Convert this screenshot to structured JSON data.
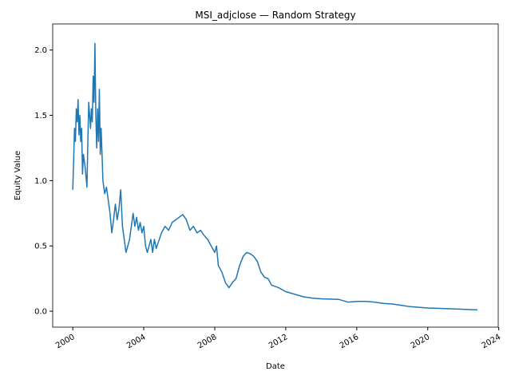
{
  "chart_data": {
    "type": "line",
    "title": "MSI_adjclose — Random Strategy",
    "x_label": "Date",
    "y_label": "Equity Value",
    "xlim": [
      1998.87,
      2023.97
    ],
    "ylim": [
      -0.122,
      2.2
    ],
    "xticks": [
      2000,
      2004,
      2008,
      2012,
      2016,
      2020,
      2024
    ],
    "yticks": [
      {
        "value": 0,
        "label": "0.0"
      },
      {
        "value": 0.5,
        "label": "0.5"
      },
      {
        "value": 1,
        "label": "1.0"
      },
      {
        "value": 1.5,
        "label": "1.5"
      },
      {
        "value": 2,
        "label": "2.0"
      }
    ],
    "grid": false,
    "series": [
      {
        "color": "#1f77b4",
        "x": [
          2000.0,
          2000.05,
          2000.1,
          2000.15,
          2000.2,
          2000.25,
          2000.3,
          2000.35,
          2000.4,
          2000.45,
          2000.5,
          2000.55,
          2000.6,
          2000.7,
          2000.8,
          2000.85,
          2000.9,
          2001.0,
          2001.05,
          2001.1,
          2001.15,
          2001.2,
          2001.25,
          2001.3,
          2001.35,
          2001.4,
          2001.45,
          2001.5,
          2001.55,
          2001.6,
          2001.7,
          2001.8,
          2001.9,
          2002.0,
          2002.1,
          2002.2,
          2002.3,
          2002.4,
          2002.5,
          2002.6,
          2002.7,
          2002.8,
          2002.9,
          2003.0,
          2003.1,
          2003.2,
          2003.3,
          2003.4,
          2003.5,
          2003.6,
          2003.7,
          2003.8,
          2003.9,
          2004.0,
          2004.1,
          2004.2,
          2004.3,
          2004.4,
          2004.5,
          2004.6,
          2004.7,
          2004.8,
          2005.0,
          2005.2,
          2005.4,
          2005.6,
          2005.8,
          2006.0,
          2006.2,
          2006.4,
          2006.6,
          2006.8,
          2007.0,
          2007.2,
          2007.4,
          2007.6,
          2007.8,
          2008.0,
          2008.1,
          2008.2,
          2008.4,
          2008.6,
          2008.8,
          2009.0,
          2009.2,
          2009.4,
          2009.6,
          2009.8,
          2010.0,
          2010.2,
          2010.4,
          2010.6,
          2010.8,
          2011.0,
          2011.2,
          2011.6,
          2012.0,
          2012.5,
          2013.0,
          2013.5,
          2014.0,
          2015.0,
          2015.5,
          2016.0,
          2016.5,
          2017.0,
          2017.5,
          2018.0,
          2018.5,
          2019.0,
          2019.5,
          2020.0,
          2021.0,
          2022.0,
          2022.8
        ],
        "values": [
          0.93,
          1.15,
          1.4,
          1.3,
          1.55,
          1.45,
          1.62,
          1.35,
          1.5,
          1.3,
          1.4,
          1.05,
          1.2,
          1.1,
          0.95,
          1.3,
          1.6,
          1.4,
          1.55,
          1.45,
          1.8,
          1.6,
          2.05,
          1.5,
          1.25,
          1.55,
          1.3,
          1.7,
          1.2,
          1.4,
          1.0,
          0.9,
          0.95,
          0.85,
          0.75,
          0.6,
          0.7,
          0.82,
          0.7,
          0.78,
          0.93,
          0.65,
          0.55,
          0.45,
          0.5,
          0.55,
          0.65,
          0.75,
          0.65,
          0.72,
          0.62,
          0.68,
          0.6,
          0.65,
          0.5,
          0.45,
          0.5,
          0.55,
          0.45,
          0.55,
          0.48,
          0.52,
          0.6,
          0.65,
          0.62,
          0.68,
          0.7,
          0.72,
          0.74,
          0.7,
          0.62,
          0.65,
          0.6,
          0.62,
          0.58,
          0.55,
          0.5,
          0.45,
          0.5,
          0.35,
          0.3,
          0.22,
          0.18,
          0.22,
          0.25,
          0.35,
          0.42,
          0.45,
          0.44,
          0.42,
          0.38,
          0.3,
          0.26,
          0.25,
          0.2,
          0.18,
          0.15,
          0.13,
          0.11,
          0.1,
          0.095,
          0.09,
          0.07,
          0.075,
          0.075,
          0.07,
          0.06,
          0.055,
          0.045,
          0.035,
          0.03,
          0.025,
          0.02,
          0.015,
          0.01
        ]
      }
    ]
  }
}
